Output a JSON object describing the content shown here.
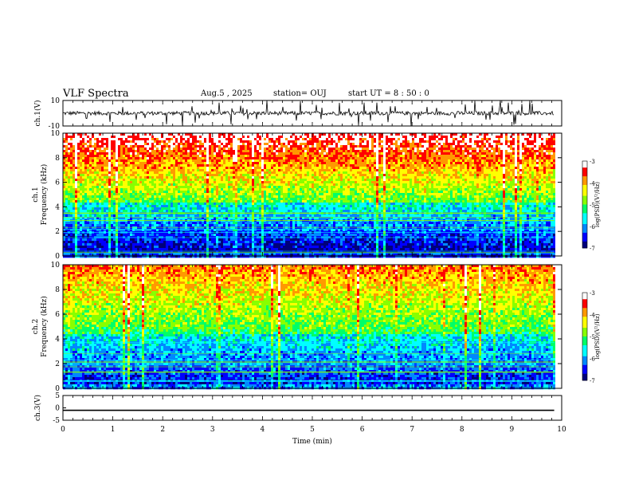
{
  "header": {
    "title": "VLF Spectra",
    "date": "Aug.5 , 2025",
    "station": "station= OUJ",
    "start": "start UT = 8 : 50 : 0"
  },
  "chart_data": [
    {
      "type": "line",
      "name_label": "ch.1(V)",
      "ylim": [
        -10,
        10
      ],
      "yticks": [
        "10",
        "-10"
      ],
      "description_values": "noisy baseline waveform around 0 V with spikes",
      "baseline": 0
    },
    {
      "type": "heatmap",
      "ylabel_channel": "ch.1",
      "ylabel": "Frequency (kHz)",
      "ylim": [
        0,
        10
      ],
      "yticks": [
        "0",
        "2",
        "4",
        "6",
        "8",
        "10"
      ],
      "xlim": [
        0,
        10
      ],
      "colorbar": {
        "label": "log(PSD)(V²/Hz)",
        "range": [
          -7,
          -3
        ],
        "ticks": [
          "-3",
          "-4",
          "-5",
          "-6",
          "-7"
        ]
      }
    },
    {
      "type": "heatmap",
      "ylabel_channel": "ch.2",
      "ylabel": "Frequency (kHz)",
      "ylim": [
        0,
        10
      ],
      "yticks": [
        "0",
        "2",
        "4",
        "6",
        "8",
        "10"
      ],
      "xlim": [
        0,
        10
      ],
      "colorbar": {
        "label": "log(PSD)(V²/Hz)",
        "range": [
          -7,
          -3
        ],
        "ticks": [
          "-3",
          "-4",
          "-5",
          "-6",
          "-7"
        ]
      }
    },
    {
      "type": "line",
      "name_label": "ch.3(V)",
      "ylim": [
        -5,
        5
      ],
      "yticks": [
        "5",
        "0",
        "-5"
      ],
      "baseline": -1
    }
  ],
  "xaxis": {
    "label": "Time (min)",
    "range": [
      0,
      10
    ],
    "ticks": [
      "0",
      "1",
      "2",
      "3",
      "4",
      "5",
      "6",
      "7",
      "8",
      "9",
      "10"
    ],
    "data_end": 9.85
  },
  "colors": {
    "scale": [
      "#00007a",
      "#0000ff",
      "#0088ff",
      "#00ffff",
      "#00ff66",
      "#88ff00",
      "#ffff00",
      "#ff9900",
      "#ff0000",
      "#ffffff"
    ]
  }
}
